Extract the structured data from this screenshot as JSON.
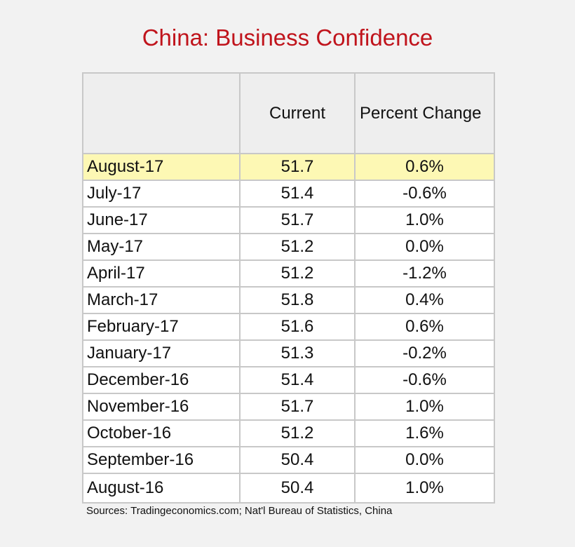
{
  "colors": {
    "title": "#c0141c",
    "highlight_row": "#fdf8b4",
    "header_fill": "#eeeeee",
    "border": "#c8c8c8"
  },
  "chart_data": {
    "type": "table",
    "title": "China: Business Confidence",
    "columns": [
      "",
      "Current",
      "Percent Change"
    ],
    "rows": [
      {
        "period": "August-17",
        "current": "51.7",
        "change": "0.6%",
        "highlighted": true
      },
      {
        "period": "July-17",
        "current": "51.4",
        "change": "-0.6%"
      },
      {
        "period": "June-17",
        "current": "51.7",
        "change": "1.0%"
      },
      {
        "period": "May-17",
        "current": "51.2",
        "change": "0.0%"
      },
      {
        "period": "April-17",
        "current": "51.2",
        "change": "-1.2%"
      },
      {
        "period": "March-17",
        "current": "51.8",
        "change": "0.4%"
      },
      {
        "period": "February-17",
        "current": "51.6",
        "change": "0.6%"
      },
      {
        "period": "January-17",
        "current": "51.3",
        "change": "-0.2%"
      },
      {
        "period": "December-16",
        "current": "51.4",
        "change": "-0.6%"
      },
      {
        "period": "November-16",
        "current": "51.7",
        "change": "1.0%"
      },
      {
        "period": "October-16",
        "current": "51.2",
        "change": "1.6%"
      },
      {
        "period": "September-16",
        "current": "50.4",
        "change": "0.0%"
      },
      {
        "period": "August-16",
        "current": "50.4",
        "change": "1.0%"
      }
    ],
    "source": "Sources: Tradingeconomics.com; Nat'l Bureau of Statistics, China"
  }
}
